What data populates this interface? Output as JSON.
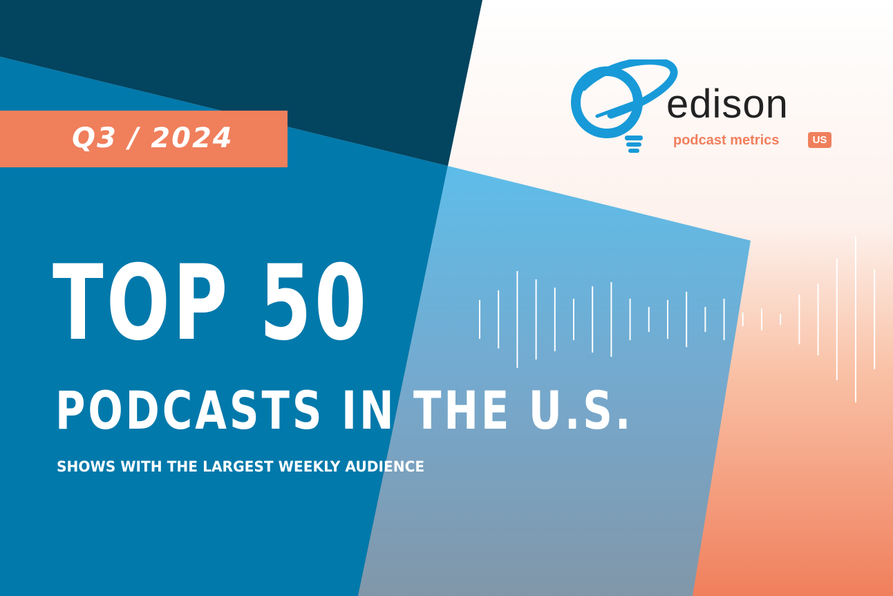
{
  "badge": {
    "label": "Q3 / 2024"
  },
  "logo": {
    "icon": "edison-lightbulb-icon",
    "wordmark": "edison",
    "subtitle": "podcast metrics",
    "region": "US"
  },
  "headline": {
    "line1": "TOP 50",
    "line2": "PODCASTS IN THE U.S.",
    "tagline": "SHOWS WITH THE LARGEST WEEKLY AUDIENCE"
  },
  "colors": {
    "navy": "#03445f",
    "blue": "#0179ab",
    "sky": "#5eb8e8",
    "coral": "#f07f5c",
    "logo_blue": "#189ad8"
  },
  "decoration": {
    "icon": "sound-waveform-icon"
  }
}
